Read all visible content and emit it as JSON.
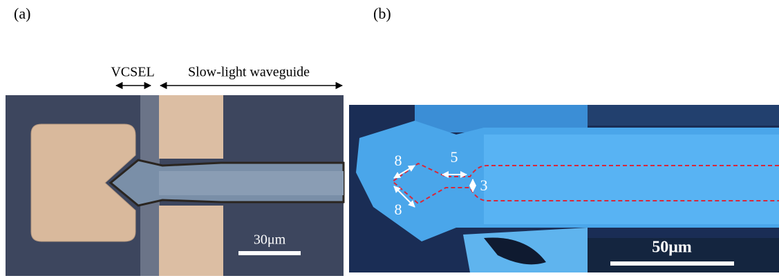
{
  "panels": [
    {
      "label": "(a)",
      "vcsel_label": "VCSEL",
      "waveguide_label": "Slow-light waveguide",
      "scale_bar": "30μm"
    },
    {
      "label": "(b)",
      "dimensions": [
        "8",
        "5",
        "3",
        "8"
      ],
      "scale_bar": "50μm"
    }
  ]
}
